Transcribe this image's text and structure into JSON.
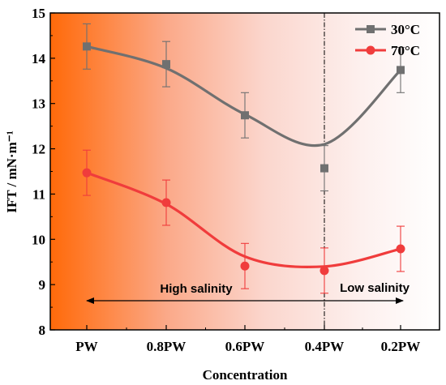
{
  "chart_data": {
    "type": "line",
    "title": "",
    "xlabel": "Concentration",
    "ylabel": "IFT / mN·m⁻¹",
    "categories": [
      "PW",
      "0.8PW",
      "0.6PW",
      "0.4PW",
      "0.2PW"
    ],
    "ylim": [
      8,
      15
    ],
    "yticks": [
      "8",
      "9",
      "10",
      "11",
      "12",
      "13",
      "14",
      "15"
    ],
    "grid": false,
    "legend_position": "top-right",
    "background": "gradient from orange-red (left) to white (right)",
    "series": [
      {
        "name": "30°C",
        "color": "#707070",
        "marker": "square",
        "values": [
          14.26,
          13.87,
          12.74,
          11.57,
          13.74
        ],
        "errors": [
          0.5,
          0.5,
          0.5,
          0.5,
          0.5
        ],
        "trend": [
          14.26,
          13.78,
          12.76,
          12.1,
          13.74
        ]
      },
      {
        "name": "70°C",
        "color": "#f03c3c",
        "marker": "circle",
        "values": [
          11.47,
          10.81,
          9.41,
          9.31,
          9.79
        ],
        "errors": [
          0.5,
          0.5,
          0.5,
          0.5,
          0.5
        ],
        "trend": [
          11.47,
          10.78,
          9.62,
          9.4,
          9.79
        ]
      }
    ],
    "annotations": {
      "high_salinity": "High salinity",
      "low_salinity": "Low salinity",
      "divider_category": "0.4PW"
    }
  }
}
